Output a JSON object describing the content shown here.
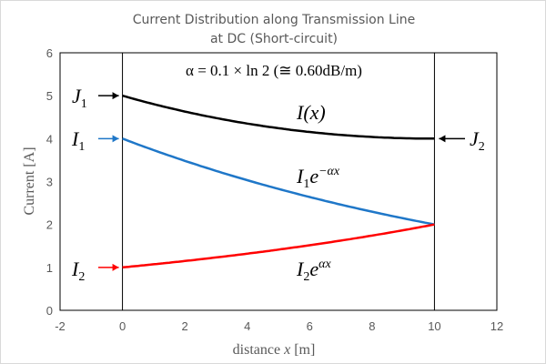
{
  "chart_data": {
    "type": "line",
    "title": "Current Distribution along Transmission Line",
    "subtitle": "at DC (Short-circuit)",
    "xlabel": "distance x [m]",
    "xlabel_parts": {
      "pre": "distance ",
      "var": "x",
      "post": " [m]"
    },
    "ylabel": "Current  [A]",
    "xlim": [
      -2,
      12
    ],
    "ylim": [
      0,
      6
    ],
    "xticks": [
      -2,
      0,
      2,
      4,
      6,
      8,
      10,
      12
    ],
    "yticks": [
      0,
      1,
      2,
      3,
      4,
      5,
      6
    ],
    "grid": false,
    "annotation": "α = 0.1 × ln 2 (≅ 0.60dB/m)",
    "alpha": 0.0693147,
    "vertical_lines": [
      0,
      10
    ],
    "series": [
      {
        "name": "I(x)",
        "color": "#000000",
        "x": [
          0,
          1,
          2,
          3,
          4,
          5,
          6,
          7,
          8,
          9,
          10
        ],
        "values": [
          5.0,
          4.8,
          4.63,
          4.48,
          4.35,
          4.24,
          4.15,
          4.08,
          4.04,
          4.01,
          4.0
        ]
      },
      {
        "name": "I1e^{-αx}",
        "color": "#1f77c8",
        "x": [
          0,
          1,
          2,
          3,
          4,
          5,
          6,
          7,
          8,
          9,
          10
        ],
        "values": [
          4.0,
          3.73,
          3.48,
          3.25,
          3.03,
          2.83,
          2.64,
          2.46,
          2.3,
          2.14,
          2.0
        ]
      },
      {
        "name": "I2e^{αx}",
        "color": "#ff0000",
        "x": [
          0,
          1,
          2,
          3,
          4,
          5,
          6,
          7,
          8,
          9,
          10
        ],
        "values": [
          1.0,
          1.07,
          1.15,
          1.23,
          1.32,
          1.41,
          1.52,
          1.62,
          1.74,
          1.87,
          2.0
        ]
      }
    ],
    "labels": {
      "J1": "J",
      "J1_sub": "1",
      "J2": "J",
      "J2_sub": "2",
      "I1": "I",
      "I1_sub": "1",
      "I2": "I",
      "I2_sub": "2",
      "Ix": "I(x)",
      "I1curve": "I",
      "I1curve_sub": "1",
      "I1curve_exp": "−αx",
      "I2curve": "I",
      "I2curve_sub": "2",
      "I2curve_exp": "αx",
      "e": "e"
    }
  }
}
